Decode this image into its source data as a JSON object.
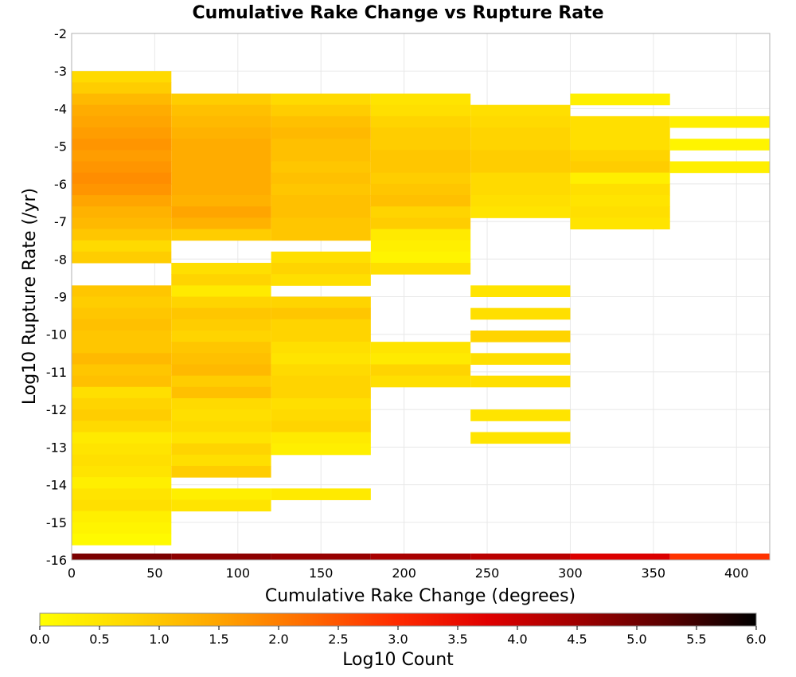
{
  "chart_data": {
    "type": "heatmap",
    "title": "Cumulative Rake Change vs Rupture Rate",
    "xlabel": "Cumulative Rake Change (degrees)",
    "ylabel": "Log10 Rupture Rate (/yr)",
    "xlim": [
      0,
      420
    ],
    "ylim": [
      -16,
      -2
    ],
    "xticks": [
      "0",
      "50",
      "100",
      "150",
      "200",
      "250",
      "300",
      "350",
      "400"
    ],
    "yticks": [
      "-2",
      "-3",
      "-4",
      "-5",
      "-6",
      "-7",
      "-8",
      "-9",
      "-10",
      "-11",
      "-12",
      "-13",
      "-14",
      "-15",
      "-16"
    ],
    "x_bin_width": 60,
    "y_bin_height": 0.3,
    "grid": true,
    "colorbar": {
      "label": "Log10 Count",
      "range": [
        0,
        6
      ],
      "ticks": [
        "0.0",
        "0.5",
        "1.0",
        "1.5",
        "2.0",
        "2.5",
        "3.0",
        "3.5",
        "4.0",
        "4.5",
        "5.0",
        "5.5",
        "6.0"
      ],
      "colors": [
        "#ffff00",
        "#ffd700",
        "#ffa500",
        "#ff6a00",
        "#ff2a00",
        "#e00000",
        "#a00000",
        "#5a0000",
        "#000000"
      ]
    },
    "rows": [
      {
        "x": 0,
        "cells": [
          [
            -3.15,
            0.7
          ],
          [
            -3.45,
            0.9
          ],
          [
            -3.75,
            1.2
          ],
          [
            -4.05,
            1.4
          ],
          [
            -4.35,
            1.5
          ],
          [
            -4.65,
            1.6
          ],
          [
            -4.95,
            1.7
          ],
          [
            -5.25,
            1.6
          ],
          [
            -5.55,
            1.7
          ],
          [
            -5.85,
            1.8
          ],
          [
            -6.15,
            1.7
          ],
          [
            -6.45,
            1.5
          ],
          [
            -6.75,
            1.3
          ],
          [
            -7.05,
            1.2
          ],
          [
            -7.35,
            1.0
          ],
          [
            -7.65,
            0.7
          ],
          [
            -7.95,
            0.9
          ],
          [
            -8.85,
            1.0
          ],
          [
            -9.15,
            0.9
          ],
          [
            -9.45,
            1.0
          ],
          [
            -9.75,
            1.1
          ],
          [
            -10.05,
            1.0
          ],
          [
            -10.35,
            1.0
          ],
          [
            -10.65,
            1.2
          ],
          [
            -10.95,
            1.0
          ],
          [
            -11.25,
            1.1
          ],
          [
            -11.55,
            0.6
          ],
          [
            -11.85,
            0.8
          ],
          [
            -12.15,
            0.9
          ],
          [
            -12.45,
            0.7
          ],
          [
            -12.75,
            0.4
          ],
          [
            -13.05,
            0.5
          ],
          [
            -13.35,
            0.6
          ],
          [
            -13.65,
            0.5
          ],
          [
            -13.95,
            0.3
          ],
          [
            -14.25,
            0.5
          ],
          [
            -14.55,
            0.6
          ],
          [
            -14.85,
            0.3
          ],
          [
            -15.15,
            0.2
          ],
          [
            -15.45,
            0.1
          ]
        ]
      },
      {
        "x": 60,
        "cells": [
          [
            -3.75,
            0.9
          ],
          [
            -4.05,
            1.1
          ],
          [
            -4.35,
            1.2
          ],
          [
            -4.65,
            1.3
          ],
          [
            -4.95,
            1.4
          ],
          [
            -5.25,
            1.4
          ],
          [
            -5.55,
            1.4
          ],
          [
            -5.85,
            1.4
          ],
          [
            -6.15,
            1.4
          ],
          [
            -6.45,
            1.3
          ],
          [
            -6.75,
            1.5
          ],
          [
            -7.05,
            1.3
          ],
          [
            -7.35,
            0.9
          ],
          [
            -8.25,
            0.6
          ],
          [
            -8.55,
            0.8
          ],
          [
            -8.85,
            0.4
          ],
          [
            -9.15,
            0.8
          ],
          [
            -9.45,
            1.0
          ],
          [
            -9.75,
            0.9
          ],
          [
            -10.05,
            0.8
          ],
          [
            -10.35,
            1.0
          ],
          [
            -10.65,
            1.1
          ],
          [
            -10.95,
            1.2
          ],
          [
            -11.25,
            0.9
          ],
          [
            -11.55,
            1.1
          ],
          [
            -11.85,
            0.7
          ],
          [
            -12.15,
            0.6
          ],
          [
            -12.45,
            0.7
          ],
          [
            -12.75,
            0.5
          ],
          [
            -13.05,
            0.8
          ],
          [
            -13.35,
            0.6
          ],
          [
            -13.65,
            0.9
          ],
          [
            -14.25,
            0.3
          ],
          [
            -14.55,
            0.5
          ]
        ]
      },
      {
        "x": 120,
        "cells": [
          [
            -3.75,
            0.7
          ],
          [
            -4.05,
            0.9
          ],
          [
            -4.35,
            1.1
          ],
          [
            -4.65,
            1.2
          ],
          [
            -4.95,
            1.1
          ],
          [
            -5.25,
            1.1
          ],
          [
            -5.55,
            1.0
          ],
          [
            -5.85,
            1.1
          ],
          [
            -6.15,
            1.0
          ],
          [
            -6.45,
            1.1
          ],
          [
            -6.75,
            1.1
          ],
          [
            -7.05,
            1.0
          ],
          [
            -7.35,
            1.0
          ],
          [
            -7.95,
            0.6
          ],
          [
            -8.25,
            0.8
          ],
          [
            -8.55,
            0.6
          ],
          [
            -9.15,
            0.8
          ],
          [
            -9.45,
            1.0
          ],
          [
            -9.75,
            0.8
          ],
          [
            -10.05,
            0.8
          ],
          [
            -10.35,
            0.6
          ],
          [
            -10.65,
            0.5
          ],
          [
            -10.95,
            0.7
          ],
          [
            -11.25,
            0.8
          ],
          [
            -11.55,
            0.8
          ],
          [
            -11.85,
            0.6
          ],
          [
            -12.15,
            0.7
          ],
          [
            -12.45,
            0.8
          ],
          [
            -12.75,
            0.4
          ],
          [
            -13.05,
            0.3
          ],
          [
            -14.25,
            0.4
          ]
        ]
      },
      {
        "x": 180,
        "cells": [
          [
            -3.75,
            0.5
          ],
          [
            -4.05,
            0.6
          ],
          [
            -4.35,
            0.8
          ],
          [
            -4.65,
            0.9
          ],
          [
            -4.95,
            0.9
          ],
          [
            -5.25,
            1.0
          ],
          [
            -5.55,
            1.0
          ],
          [
            -5.85,
            0.9
          ],
          [
            -6.15,
            1.0
          ],
          [
            -6.45,
            1.1
          ],
          [
            -6.75,
            0.8
          ],
          [
            -7.05,
            0.9
          ],
          [
            -7.35,
            0.4
          ],
          [
            -7.65,
            0.3
          ],
          [
            -7.95,
            0.2
          ],
          [
            -8.25,
            0.6
          ],
          [
            -10.35,
            0.5
          ],
          [
            -10.65,
            0.4
          ],
          [
            -10.95,
            0.8
          ],
          [
            -11.25,
            0.6
          ]
        ]
      },
      {
        "x": 240,
        "cells": [
          [
            -4.05,
            0.6
          ],
          [
            -4.35,
            0.7
          ],
          [
            -4.65,
            0.8
          ],
          [
            -4.95,
            0.8
          ],
          [
            -5.25,
            0.9
          ],
          [
            -5.55,
            0.9
          ],
          [
            -5.85,
            0.7
          ],
          [
            -6.15,
            0.7
          ],
          [
            -6.45,
            0.6
          ],
          [
            -6.75,
            0.5
          ],
          [
            -8.85,
            0.5
          ],
          [
            -9.45,
            0.6
          ],
          [
            -10.05,
            0.8
          ],
          [
            -10.65,
            0.6
          ],
          [
            -11.25,
            0.6
          ],
          [
            -12.15,
            0.5
          ],
          [
            -12.75,
            0.5
          ]
        ]
      },
      {
        "x": 300,
        "cells": [
          [
            -3.75,
            0.3
          ],
          [
            -4.35,
            0.6
          ],
          [
            -4.65,
            0.6
          ],
          [
            -4.95,
            0.6
          ],
          [
            -5.25,
            0.8
          ],
          [
            -5.55,
            0.9
          ],
          [
            -5.85,
            0.3
          ],
          [
            -6.15,
            0.6
          ],
          [
            -6.45,
            0.5
          ],
          [
            -6.75,
            0.6
          ],
          [
            -7.05,
            0.5
          ]
        ]
      },
      {
        "x": 360,
        "cells": [
          [
            -4.35,
            0.3
          ],
          [
            -4.95,
            0.2
          ],
          [
            -5.55,
            0.3
          ]
        ]
      }
    ],
    "bottom_band": [
      {
        "x": 0,
        "value": 4.9
      },
      {
        "x": 60,
        "value": 4.7
      },
      {
        "x": 120,
        "value": 4.6
      },
      {
        "x": 180,
        "value": 4.4
      },
      {
        "x": 240,
        "value": 4.2
      },
      {
        "x": 300,
        "value": 3.8
      },
      {
        "x": 360,
        "value": 2.9
      }
    ]
  }
}
